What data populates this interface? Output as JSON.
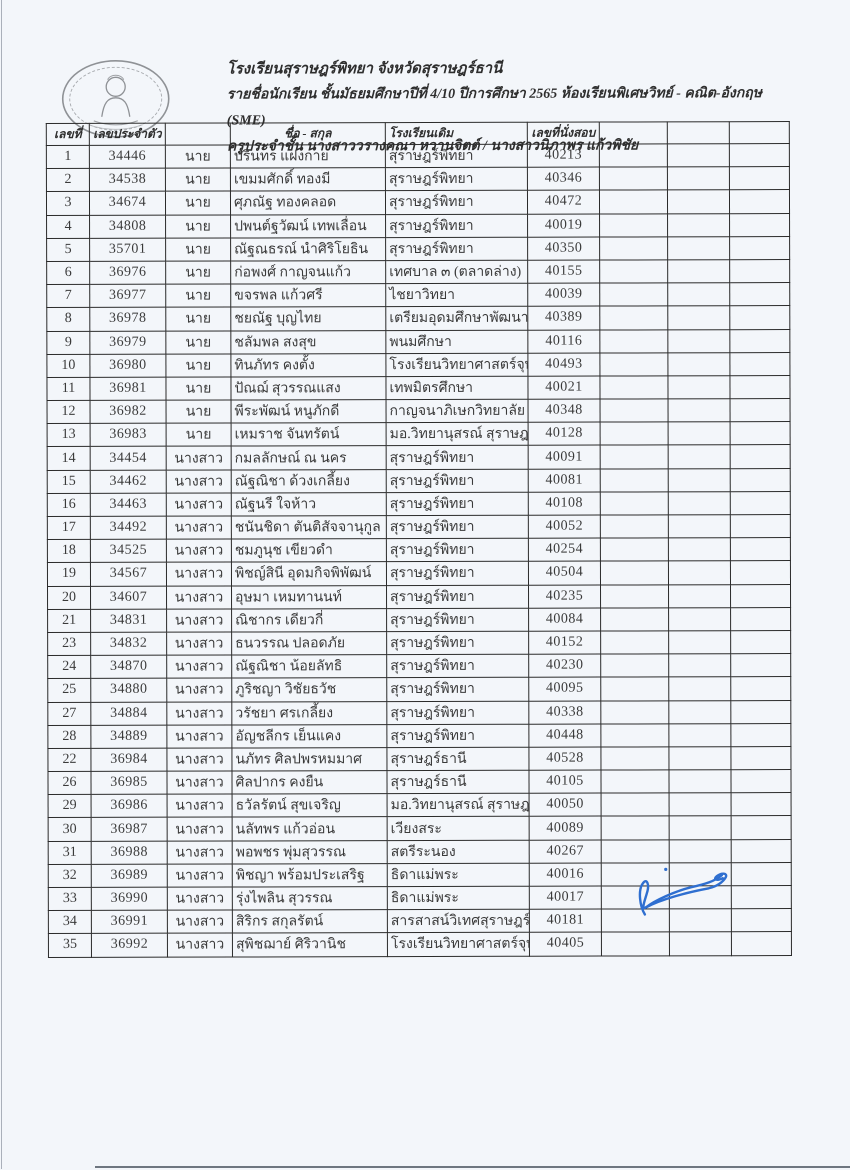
{
  "header": {
    "school_line": "โรงเรียนสุราษฎร์พิทยา จังหวัดสุราษฎร์ธานี",
    "class_line": "รายชื่อนักเรียน ชั้นมัธยมศึกษาปีที่ 4/10 ปีการศึกษา 2565 ห้องเรียนพิเศษวิทย์ - คณิต-อังกฤษ (SME)",
    "teacher_line": "ครูประจำชั้น นางสาววรางคณา หวานจิตต์ / นางสาวนิภาพร แก้วพิชัย"
  },
  "emblem": {
    "name": "school-emblem"
  },
  "table": {
    "columns": [
      "เลขที่",
      "เลขประจำตัว",
      "",
      "ชื่อ - สกุล",
      "โรงเรียนเดิม",
      "เลขที่นั่งสอบ",
      "",
      "",
      ""
    ],
    "rows": [
      {
        "no": "1",
        "id": "34446",
        "title": "นาย",
        "name": "ปรินทร แฝงกาย",
        "school": "สุราษฎร์พิทยา",
        "seat": "40213",
        "school_size": "normal"
      },
      {
        "no": "2",
        "id": "34538",
        "title": "นาย",
        "name": "เขมมศักดิ์ ทองมี",
        "school": "สุราษฎร์พิทยา",
        "seat": "40346",
        "school_size": "normal"
      },
      {
        "no": "3",
        "id": "34674",
        "title": "นาย",
        "name": "ศุภณัฐ ทองคลอด",
        "school": "สุราษฎร์พิทยา",
        "seat": "40472",
        "school_size": "normal"
      },
      {
        "no": "4",
        "id": "34808",
        "title": "นาย",
        "name": "ปพนต์ฐวัฒน์ เทพเลื่อน",
        "school": "สุราษฎร์พิทยา",
        "seat": "40019",
        "school_size": "normal"
      },
      {
        "no": "5",
        "id": "35701",
        "title": "นาย",
        "name": "ณัฐณธรณ์ นำศิริโยธิน",
        "school": "สุราษฎร์พิทยา",
        "seat": "40350",
        "school_size": "normal"
      },
      {
        "no": "6",
        "id": "36976",
        "title": "นาย",
        "name": "ก่อพงศ์ กาญจนแก้ว",
        "school": "เทศบาล ๓ (ตลาดล่าง)",
        "seat": "40155",
        "school_size": "normal"
      },
      {
        "no": "7",
        "id": "36977",
        "title": "นาย",
        "name": "ขจรพล แก้วศรี",
        "school": "ไชยาวิทยา",
        "seat": "40039",
        "school_size": "normal"
      },
      {
        "no": "8",
        "id": "36978",
        "title": "นาย",
        "name": "ชยณัฐ บุญไทย",
        "school": "เตรียมอุดมศึกษาพัฒนาการ สุราษฎร์ธานี",
        "seat": "40389",
        "school_size": "xsmall"
      },
      {
        "no": "9",
        "id": "36979",
        "title": "นาย",
        "name": "ชลัมพล สงสุข",
        "school": "พนมศึกษา",
        "seat": "40116",
        "school_size": "normal"
      },
      {
        "no": "10",
        "id": "36980",
        "title": "นาย",
        "name": "ทินภัทร คงตั้ง",
        "school": "โรงเรียนวิทยาศาสตร์จุฬาภรณราชวิทยาลัย นครศรีธรรมราช",
        "seat": "40493",
        "school_size": "xxsmall"
      },
      {
        "no": "11",
        "id": "36981",
        "title": "นาย",
        "name": "ปัณฌ์ สุวรรณแสง",
        "school": "เทพมิตรศึกษา",
        "seat": "40021",
        "school_size": "normal"
      },
      {
        "no": "12",
        "id": "36982",
        "title": "นาย",
        "name": "พีระพัฒน์ หนูภักดี",
        "school": "กาญจนาภิเษกวิทยาลัย สุราษฎร์ธานี",
        "seat": "40348",
        "school_size": "xsmall"
      },
      {
        "no": "13",
        "id": "36983",
        "title": "นาย",
        "name": "เหมราช จันทรัตน์",
        "school": "มอ.วิทยานุสรณ์ สุราษฎร์ธานี",
        "seat": "40128",
        "school_size": "small"
      },
      {
        "no": "14",
        "id": "34454",
        "title": "นางสาว",
        "name": "กมลลักษณ์ ณ นคร",
        "school": "สุราษฎร์พิทยา",
        "seat": "40091",
        "school_size": "normal"
      },
      {
        "no": "15",
        "id": "34462",
        "title": "นางสาว",
        "name": "ณัฐณิชา ด้วงเกลี้ยง",
        "school": "สุราษฎร์พิทยา",
        "seat": "40081",
        "school_size": "normal"
      },
      {
        "no": "16",
        "id": "34463",
        "title": "นางสาว",
        "name": "ณัฐนรี ใจห้าว",
        "school": "สุราษฎร์พิทยา",
        "seat": "40108",
        "school_size": "normal"
      },
      {
        "no": "17",
        "id": "34492",
        "title": "นางสาว",
        "name": "ชนันชิดา ตันติสัจจานุกูล",
        "school": "สุราษฎร์พิทยา",
        "seat": "40052",
        "school_size": "normal"
      },
      {
        "no": "18",
        "id": "34525",
        "title": "นางสาว",
        "name": "ชมภูนุช เขียวดำ",
        "school": "สุราษฎร์พิทยา",
        "seat": "40254",
        "school_size": "normal"
      },
      {
        "no": "19",
        "id": "34567",
        "title": "นางสาว",
        "name": "พิชญ์สินี อุดมกิจพิพัฒน์",
        "school": "สุราษฎร์พิทยา",
        "seat": "40504",
        "school_size": "normal"
      },
      {
        "no": "20",
        "id": "34607",
        "title": "นางสาว",
        "name": "อุษมา เหมทานนท์",
        "school": "สุราษฎร์พิทยา",
        "seat": "40235",
        "school_size": "normal"
      },
      {
        "no": "21",
        "id": "34831",
        "title": "นางสาว",
        "name": "ณิชากร เดียวกี่",
        "school": "สุราษฎร์พิทยา",
        "seat": "40084",
        "school_size": "normal"
      },
      {
        "no": "23",
        "id": "34832",
        "title": "นางสาว",
        "name": "ธนวรรณ ปลอดภัย",
        "school": "สุราษฎร์พิทยา",
        "seat": "40152",
        "school_size": "normal"
      },
      {
        "no": "24",
        "id": "34870",
        "title": "นางสาว",
        "name": "ณัฐณิชา น้อยลัทธิ",
        "school": "สุราษฎร์พิทยา",
        "seat": "40230",
        "school_size": "normal"
      },
      {
        "no": "25",
        "id": "34880",
        "title": "นางสาว",
        "name": "ภูริชญา วิชัยธวัช",
        "school": "สุราษฎร์พิทยา",
        "seat": "40095",
        "school_size": "normal"
      },
      {
        "no": "27",
        "id": "34884",
        "title": "นางสาว",
        "name": "วรัชยา ศรเกลี้ยง",
        "school": "สุราษฎร์พิทยา",
        "seat": "40338",
        "school_size": "normal"
      },
      {
        "no": "28",
        "id": "34889",
        "title": "นางสาว",
        "name": "อัญชลีกร เย็นแคง",
        "school": "สุราษฎร์พิทยา",
        "seat": "40448",
        "school_size": "normal"
      },
      {
        "no": "22",
        "id": "36984",
        "title": "นางสาว",
        "name": "นภัทร ศิลปพรหมมาศ",
        "school": "สุราษฎร์ธานี",
        "seat": "40528",
        "school_size": "normal"
      },
      {
        "no": "26",
        "id": "36985",
        "title": "นางสาว",
        "name": "ศิลปากร คงยืน",
        "school": "สุราษฎร์ธานี",
        "seat": "40105",
        "school_size": "normal"
      },
      {
        "no": "29",
        "id": "36986",
        "title": "นางสาว",
        "name": "ธวัลรัตน์ สุขเจริญ",
        "school": "มอ.วิทยานุสรณ์ สุราษฎร์ธานี",
        "seat": "40050",
        "school_size": "small"
      },
      {
        "no": "30",
        "id": "36987",
        "title": "นางสาว",
        "name": "นลัทพร แก้วอ่อน",
        "school": "เวียงสระ",
        "seat": "40089",
        "school_size": "normal"
      },
      {
        "no": "31",
        "id": "36988",
        "title": "นางสาว",
        "name": "พอพชร พุ่มสุวรรณ",
        "school": "สตรีระนอง",
        "seat": "40267",
        "school_size": "normal"
      },
      {
        "no": "32",
        "id": "36989",
        "title": "นางสาว",
        "name": "พิชญา พร้อมประเสริฐ",
        "school": "ธิดาแม่พระ",
        "seat": "40016",
        "school_size": "normal"
      },
      {
        "no": "33",
        "id": "36990",
        "title": "นางสาว",
        "name": "รุ่งไพลิน สุวรรณ",
        "school": "ธิดาแม่พระ",
        "seat": "40017",
        "school_size": "normal"
      },
      {
        "no": "34",
        "id": "36991",
        "title": "นางสาว",
        "name": "สิริกร สกุลรัตน์",
        "school": "สารสาสน์วิเทศสุราษฎร์ธานี",
        "seat": "40181",
        "school_size": "small"
      },
      {
        "no": "35",
        "id": "36992",
        "title": "นางสาว",
        "name": "สุพิชฌาย์ ศิริวานิช",
        "school": "โรงเรียนวิทยาศาสตร์จุฬาภรณราชวิทยาลัย นครศรีธรรมราช",
        "seat": "40405",
        "school_size": "xxsmall"
      }
    ]
  },
  "signature": {
    "ink_color": "#2f6fd0"
  }
}
